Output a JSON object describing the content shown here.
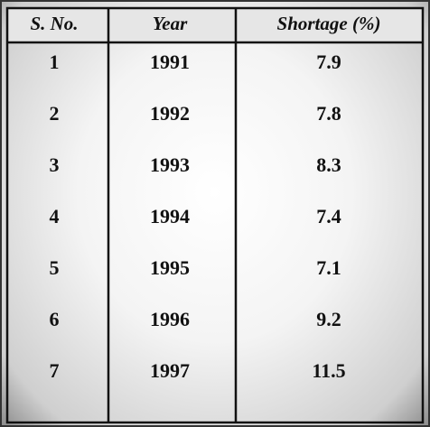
{
  "table": {
    "header": [
      "S. No.",
      "Year",
      "Shortage (%)"
    ],
    "rows": [
      [
        "1",
        "1991",
        "7.9"
      ],
      [
        "2",
        "1992",
        "7.8"
      ],
      [
        "3",
        "1993",
        "8.3"
      ],
      [
        "4",
        "1994",
        "7.4"
      ],
      [
        "5",
        "1995",
        "7.1"
      ],
      [
        "6",
        "1996",
        "9.2"
      ],
      [
        "7",
        "1997",
        "11.5"
      ]
    ]
  }
}
